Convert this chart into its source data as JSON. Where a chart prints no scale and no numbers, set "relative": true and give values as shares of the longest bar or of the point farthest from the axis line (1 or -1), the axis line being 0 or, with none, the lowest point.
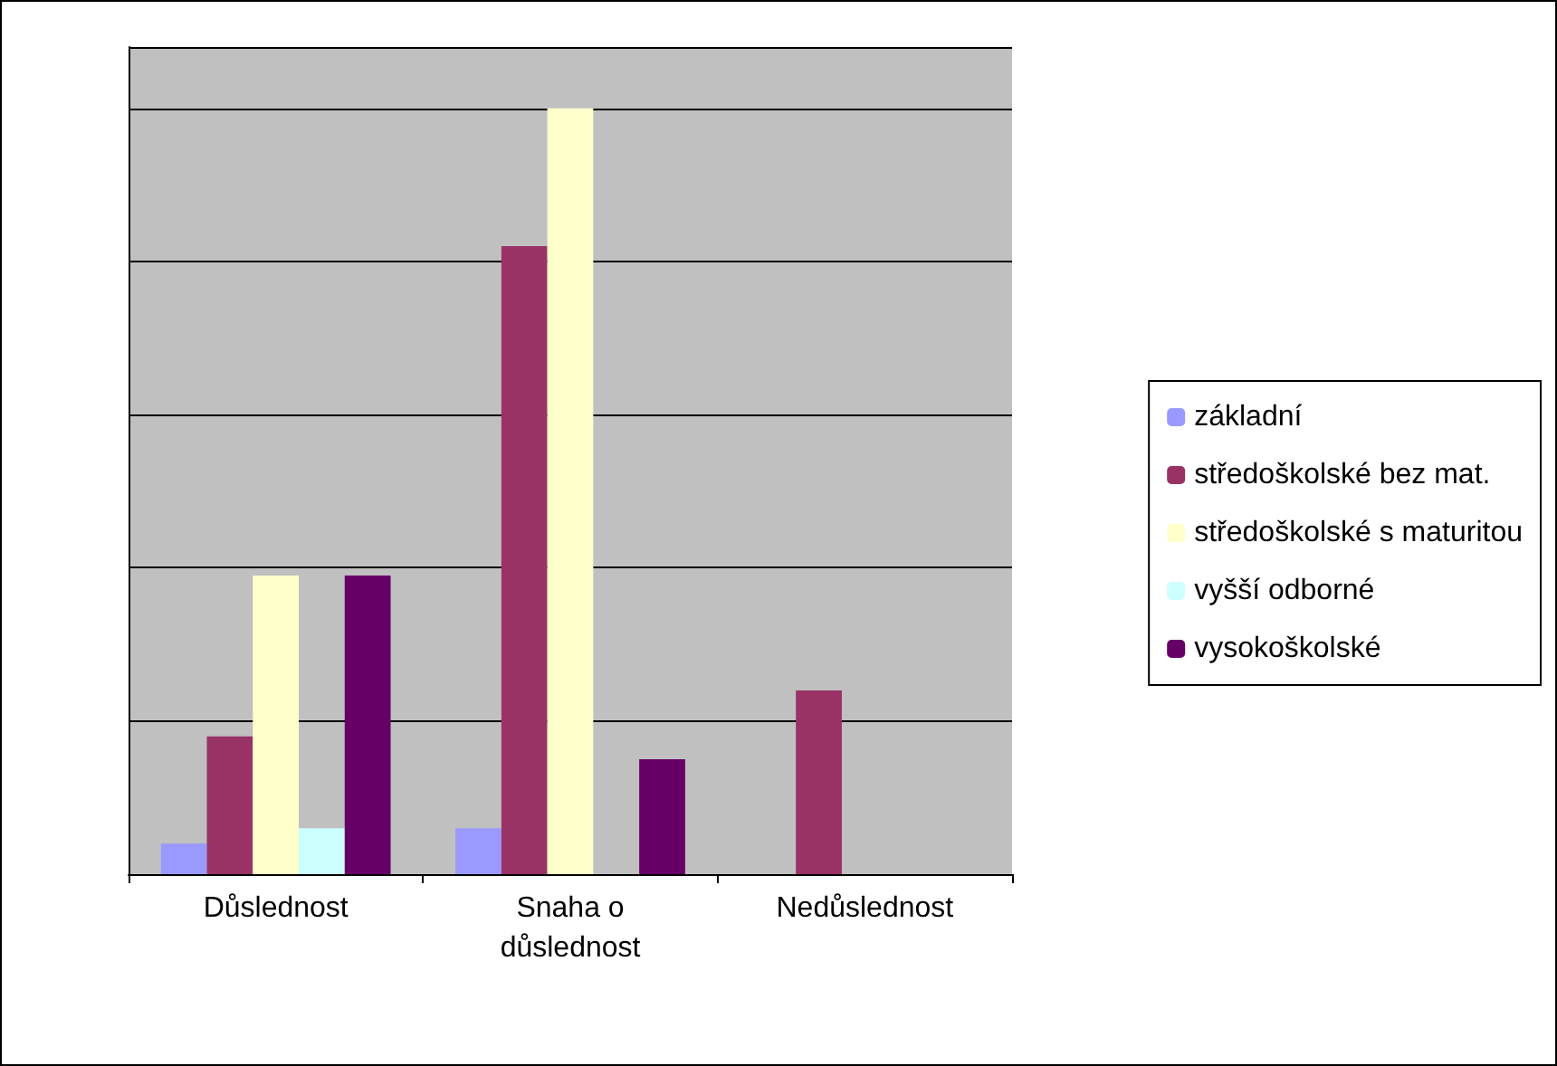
{
  "chart_data": {
    "type": "bar",
    "relative": true,
    "categories": [
      "Důslednost",
      "Snaha o\ndůslednost",
      "Nedůslednost"
    ],
    "series": [
      {
        "name": "základní",
        "color": "#9999ff",
        "values": [
          0.04,
          0.06,
          0
        ]
      },
      {
        "name": "středoškolské bez mat.",
        "color": "#993366",
        "values": [
          0.18,
          0.82,
          0.24
        ]
      },
      {
        "name": "středoškolské s maturitou",
        "color": "#ffffcc",
        "values": [
          0.39,
          1,
          0
        ]
      },
      {
        "name": "vyšší odborné",
        "color": "#ccffff",
        "values": [
          0.06,
          0,
          0
        ]
      },
      {
        "name": "vysokoškolské",
        "color": "#660066",
        "values": [
          0.39,
          0.15,
          0
        ]
      }
    ],
    "grid": "y",
    "legend": "right"
  }
}
